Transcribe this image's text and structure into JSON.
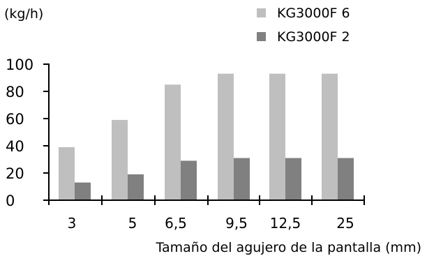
{
  "chart_data": {
    "type": "bar",
    "title": "",
    "ylabel": "(kg/h)",
    "xlabel": "Tamaño del agujero de la pantalla (mm)",
    "categories": [
      "3",
      "5",
      "6,5",
      "9,5",
      "12,5",
      "25"
    ],
    "series": [
      {
        "name": "KG3000F 6",
        "values": [
          39,
          59,
          85,
          93,
          93,
          93
        ],
        "color": "#bfbfbf"
      },
      {
        "name": "KG3000F 2",
        "values": [
          13,
          19,
          29,
          31,
          31,
          31
        ],
        "color": "#808080"
      }
    ],
    "ylim": [
      0,
      100
    ],
    "yticks": [
      0,
      20,
      40,
      60,
      80,
      100
    ],
    "grid": false,
    "legend": "top-right"
  }
}
